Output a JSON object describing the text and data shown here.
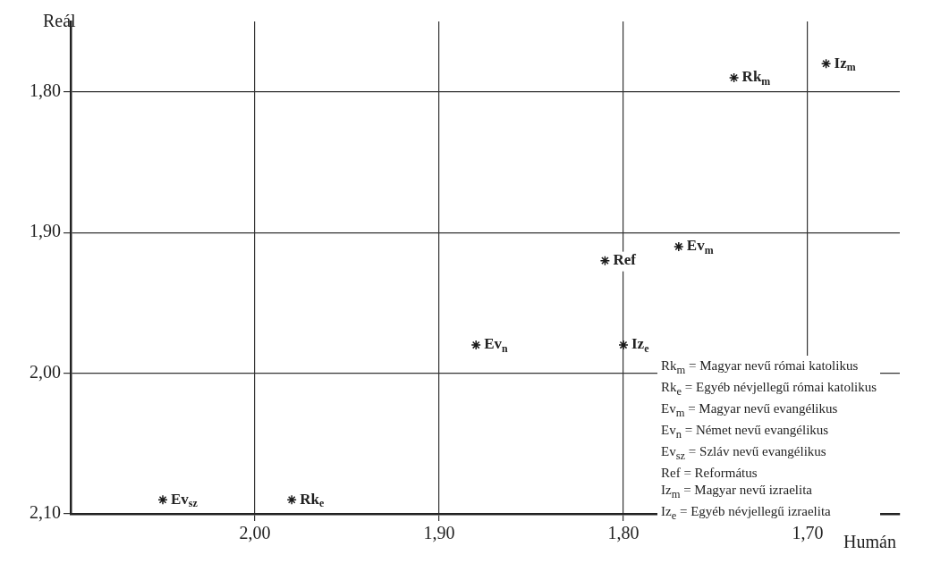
{
  "chart_data": {
    "type": "scatter",
    "xlabel": "Humán",
    "ylabel": "Reál",
    "x": [
      1.74,
      1.69,
      1.77,
      1.81,
      1.88,
      1.8,
      2.05,
      1.98
    ],
    "values": [
      1.79,
      1.78,
      1.91,
      1.92,
      1.98,
      1.98,
      2.09,
      2.09
    ],
    "color": "#1a1a1a",
    "marker": "cross",
    "grid": true,
    "xlim": [
      2.1,
      1.65
    ],
    "ylim": [
      2.1,
      1.75
    ],
    "xticks": [
      {
        "value": 2.0,
        "label": "2,00"
      },
      {
        "value": 1.9,
        "label": "1,90"
      },
      {
        "value": 1.8,
        "label": "1,80"
      },
      {
        "value": 1.7,
        "label": "1,70"
      }
    ],
    "yticks": [
      {
        "value": 1.8,
        "label": "1,80"
      },
      {
        "value": 1.9,
        "label": "1,90"
      },
      {
        "value": 2.0,
        "label": "2,00"
      },
      {
        "value": 2.1,
        "label": "2,10"
      }
    ],
    "annotations": [
      {
        "text": "Rk$_{m}$",
        "x": 1.74,
        "y": 1.79
      },
      {
        "text": "Iz$_{m}$",
        "x": 1.69,
        "y": 1.78
      },
      {
        "text": "Ev$_{m}$",
        "x": 1.77,
        "y": 1.91
      },
      {
        "text": "Ref",
        "x": 1.81,
        "y": 1.92
      },
      {
        "text": "Ev$_{n}$",
        "x": 1.88,
        "y": 1.98
      },
      {
        "text": "Iz$_{e}$",
        "x": 1.8,
        "y": 1.98
      },
      {
        "text": "Ev$_{sz}$",
        "x": 2.05,
        "y": 2.09
      },
      {
        "text": "Rk$_{e}$",
        "x": 1.98,
        "y": 2.09
      },
      "Rk$_{m}$ = Magyar nevű római katolikus",
      "Rk$_{e}$ = Egyéb névjellegű római katolikus",
      "Ev$_{m}$ = Magyar nevű evangélikus",
      "Ev$_{n}$ = Német nevű evangélikus",
      "Ev$_{sz}$ = Szláv nevű evangélikus",
      "Ref = Református",
      "Iz$_{m}$ = Magyar nevű izraelita",
      "Iz$_{e}$ = Egyéb névjellegű izraelita"
    ]
  }
}
